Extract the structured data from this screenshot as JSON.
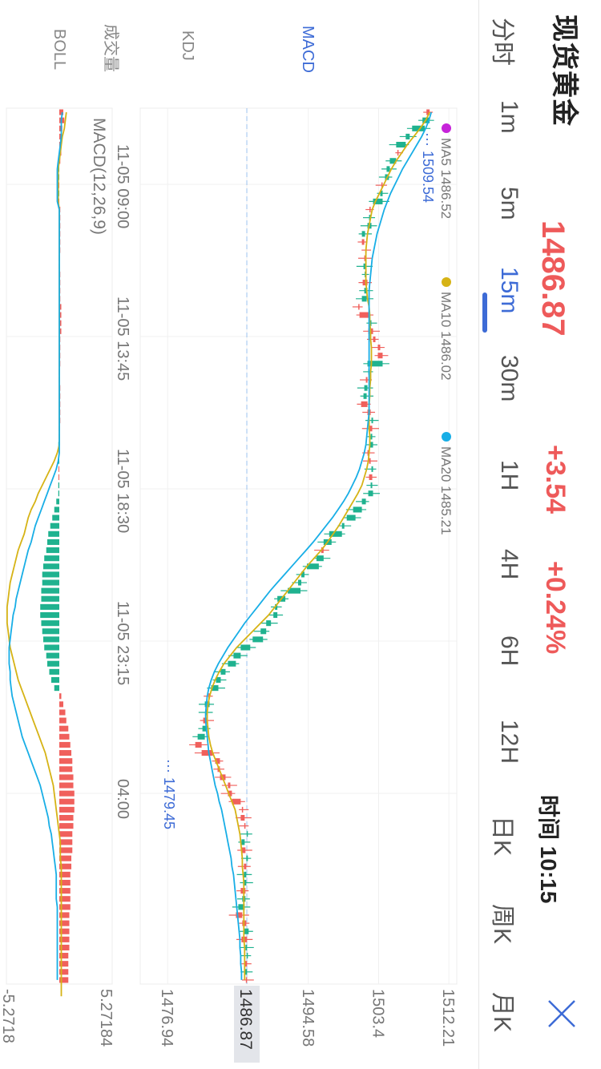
{
  "header": {
    "title": "现货黄金",
    "price": "1486.87",
    "change": "+3.54",
    "change_pct": "+0.24%",
    "time_label": "时间",
    "time_value": "10:15",
    "close_icon": "close-icon"
  },
  "periods": [
    {
      "label": "分时",
      "active": false
    },
    {
      "label": "1m",
      "active": false
    },
    {
      "label": "5m",
      "active": false
    },
    {
      "label": "15m",
      "active": true
    },
    {
      "label": "30m",
      "active": false
    },
    {
      "label": "1H",
      "active": false
    },
    {
      "label": "4H",
      "active": false
    },
    {
      "label": "6H",
      "active": false
    },
    {
      "label": "12H",
      "active": false
    },
    {
      "label": "日K",
      "active": false
    },
    {
      "label": "周K",
      "active": false
    },
    {
      "label": "月K",
      "active": false
    }
  ],
  "indicator_tabs": [
    {
      "label": "成交量",
      "active": false
    },
    {
      "label": "MACD",
      "active": true
    },
    {
      "label": "KDJ",
      "active": false
    },
    {
      "label": "BOLL",
      "active": false
    }
  ],
  "colors": {
    "up": "#f0605c",
    "down": "#1fb28f",
    "ma5": "#c623d9",
    "ma10": "#d6b315",
    "ma20": "#18aee6",
    "accent": "#3d6bd6"
  },
  "chart_data": [
    {
      "type": "candlestick",
      "legend": [
        {
          "name": "MA5",
          "value": "1486.52"
        },
        {
          "name": "MA10",
          "value": "1486.02"
        },
        {
          "name": "MA20",
          "value": "1485.21"
        }
      ],
      "y_ticks": [
        "1512.21",
        "1503.4",
        "1494.58",
        "1486.87",
        "1476.94"
      ],
      "ylim": [
        1473.5,
        1513.2
      ],
      "current_price": 1486.87,
      "x_ticks": [
        "11-05 09:00",
        "11-05 13:45",
        "11-05 18:30",
        "11-05 23:15",
        "04:00"
      ],
      "high_label": "1509.54",
      "low_label": "1479.45",
      "close_series": [
        1509.8,
        1508.9,
        1507.6,
        1506.8,
        1505.6,
        1505.9,
        1504.8,
        1504.4,
        1504.2,
        1503.9,
        1503.6,
        1502.7,
        1502.4,
        1502.2,
        1502.0,
        1501.3,
        1501.6,
        1501.9,
        1501.8,
        1501.5,
        1501.7,
        1502.0,
        1501.6,
        1501.3,
        1501.0,
        1502.2,
        1502.4,
        1502.7,
        1503.0,
        1503.6,
        1503.9,
        1502.0,
        1502.1,
        1502.0,
        1501.6,
        1501.5,
        1502.0,
        1502.4,
        1502.5,
        1502.6,
        1502.4,
        1502.3,
        1502.2,
        1502.4,
        1502.5,
        1502.6,
        1502.4,
        1502.1,
        1501.3,
        1500.2,
        1499.4,
        1498.8,
        1497.2,
        1496.5,
        1496.5,
        1495.6,
        1494.4,
        1493.7,
        1493.3,
        1492.0,
        1490.7,
        1490.4,
        1490.2,
        1489.3,
        1488.6,
        1487.6,
        1486.1,
        1485.2,
        1484.5,
        1483.6,
        1483.0,
        1482.4,
        1482.2,
        1481.6,
        1481.7,
        1481.9,
        1481.3,
        1480.7,
        1481.2,
        1482.6,
        1483.5,
        1483.5,
        1484.2,
        1484.8,
        1485.0,
        1486.1,
        1486.4,
        1486.6,
        1486.7,
        1486.9,
        1486.2,
        1486.7,
        1486.8,
        1486.8,
        1486.5,
        1486.4,
        1486.7,
        1486.3,
        1485.8,
        1486.3,
        1486.8,
        1486.5,
        1486.9,
        1486.7,
        1486.9,
        1486.9,
        1486.6,
        1486.9
      ],
      "ma10_series": [
        1509.8,
        1509.3,
        1508.6,
        1507.8,
        1507.0,
        1506.3,
        1505.6,
        1505.0,
        1504.5,
        1504.0,
        1503.5,
        1503.0,
        1502.6,
        1502.4,
        1502.2,
        1502.0,
        1501.9,
        1501.8,
        1501.8,
        1501.8,
        1501.8,
        1501.8,
        1501.9,
        1502.0,
        1502.2,
        1502.3,
        1502.3,
        1502.4,
        1502.4,
        1502.5,
        1502.5,
        1502.5,
        1502.4,
        1502.4,
        1502.3,
        1502.3,
        1502.2,
        1502.2,
        1502.2,
        1502.2,
        1502.3,
        1502.3,
        1502.2,
        1502.1,
        1501.9,
        1501.6,
        1501.3,
        1500.8,
        1500.2,
        1499.6,
        1499.0,
        1498.4,
        1497.7,
        1497.0,
        1496.2,
        1495.3,
        1494.4,
        1493.6,
        1492.8,
        1492.0,
        1491.2,
        1490.4,
        1489.6,
        1488.6,
        1487.6,
        1486.6,
        1485.6,
        1484.8,
        1484.0,
        1483.4,
        1482.9,
        1482.5,
        1482.2,
        1482.0,
        1481.9,
        1481.9,
        1482.0,
        1482.1,
        1482.3,
        1482.6,
        1483.0,
        1483.4,
        1483.8,
        1484.2,
        1484.6,
        1485.0,
        1485.4,
        1485.6,
        1485.8,
        1486.0,
        1486.1,
        1486.2,
        1486.3,
        1486.3,
        1486.4,
        1486.5,
        1486.5,
        1486.5,
        1486.5,
        1486.5,
        1486.5,
        1486.5,
        1486.5,
        1486.6,
        1486.6,
        1486.6,
        1486.6,
        1486.6
      ],
      "ma20_series": [
        1510.0,
        1509.7,
        1509.3,
        1508.8,
        1508.2,
        1507.6,
        1507.0,
        1506.4,
        1505.9,
        1505.4,
        1504.9,
        1504.5,
        1504.1,
        1503.8,
        1503.5,
        1503.2,
        1503.0,
        1502.8,
        1502.6,
        1502.5,
        1502.4,
        1502.3,
        1502.2,
        1502.2,
        1502.2,
        1502.2,
        1502.2,
        1502.2,
        1502.2,
        1502.2,
        1502.2,
        1502.2,
        1502.2,
        1502.2,
        1502.2,
        1502.2,
        1502.2,
        1502.2,
        1502.1,
        1502.0,
        1501.9,
        1501.8,
        1501.6,
        1501.3,
        1501.0,
        1500.6,
        1500.1,
        1499.6,
        1499.0,
        1498.3,
        1497.6,
        1496.8,
        1496.0,
        1495.2,
        1494.3,
        1493.4,
        1492.5,
        1491.6,
        1490.7,
        1489.8,
        1489.0,
        1488.2,
        1487.4,
        1486.6,
        1485.9,
        1485.2,
        1484.5,
        1483.9,
        1483.3,
        1482.8,
        1482.4,
        1482.1,
        1481.9,
        1481.8,
        1481.7,
        1481.7,
        1481.8,
        1481.9,
        1482.0,
        1482.1,
        1482.3,
        1482.5,
        1482.7,
        1482.9,
        1483.2,
        1483.4,
        1483.7,
        1483.9,
        1484.1,
        1484.3,
        1484.5,
        1484.7,
        1484.9,
        1485.0,
        1485.2,
        1485.3,
        1485.4,
        1485.5,
        1485.6,
        1485.7,
        1485.8,
        1485.9,
        1486.0,
        1486.0,
        1486.1,
        1486.1,
        1486.2,
        1486.2
      ]
    },
    {
      "type": "bar",
      "name": "MACD(12,26,9)",
      "y_ticks": [
        "5.27184",
        "-5.2718"
      ],
      "ylim": [
        -5.2718,
        5.27184
      ],
      "histogram": [
        0.4,
        0.5,
        0.3,
        0.2,
        0.1,
        0.2,
        0.1,
        -0.1,
        -0.1,
        0,
        -0.1,
        0,
        0.1,
        0.1,
        0.1,
        0.1,
        0.1,
        0.1,
        0,
        0,
        0.1,
        0.1,
        0.1,
        0.1,
        0.2,
        0.2,
        0.2,
        0.2,
        0.1,
        0.1,
        0.1,
        0.1,
        0,
        0,
        0.1,
        0.1,
        0.1,
        0.1,
        0.1,
        0,
        0,
        -0.1,
        0,
        -0.1,
        0,
        0,
        -0.1,
        -0.1,
        -0.3,
        -0.5,
        -0.7,
        -0.9,
        -1.1,
        -1.2,
        -1.3,
        -1.5,
        -1.6,
        -1.7,
        -1.7,
        -1.8,
        -1.8,
        -1.9,
        -1.9,
        -1.8,
        -1.7,
        -1.6,
        -1.5,
        -1.3,
        -1.2,
        -1.0,
        -0.8,
        -0.5,
        0.2,
        0.4,
        0.6,
        0.7,
        0.9,
        1.0,
        1.1,
        1.2,
        1.3,
        1.3,
        1.4,
        1.4,
        1.5,
        1.5,
        1.5,
        1.4,
        1.4,
        1.3,
        1.3,
        1.3,
        1.2,
        1.2,
        1.1,
        1.1,
        1.1,
        1.1,
        1.1,
        1.0,
        1.0,
        1.0,
        1.0,
        1.0,
        0.9,
        0.9,
        0.9,
        0.9
      ],
      "dif_series": [
        0.7,
        0.6,
        0.5,
        0.3,
        0.2,
        0.1,
        0.0,
        -0.1,
        -0.1,
        -0.1,
        -0.1,
        -0.1,
        0,
        0,
        0,
        0,
        0,
        0,
        0,
        0,
        0,
        0,
        0,
        0,
        0,
        0,
        0,
        0,
        0,
        0,
        0,
        0,
        0,
        0,
        0,
        0,
        0,
        0,
        0,
        0,
        0,
        0,
        -0.2,
        -0.5,
        -0.9,
        -1.3,
        -1.7,
        -2.1,
        -2.4,
        -2.8,
        -3.1,
        -3.3,
        -3.5,
        -3.8,
        -4.1,
        -4.3,
        -4.5,
        -4.7,
        -4.9,
        -5.0,
        -5.1,
        -5.2,
        -5.2,
        -5.2,
        -5.1,
        -5.0,
        -4.9,
        -4.7,
        -4.5,
        -4.3,
        -4.1,
        -3.8,
        -3.5,
        -3.2,
        -2.9,
        -2.6,
        -2.3,
        -2.0,
        -1.7,
        -1.4,
        -1.2,
        -1.0,
        -0.8,
        -0.6,
        -0.5,
        -0.4,
        -0.3,
        -0.2,
        -0.1,
        0,
        0.1,
        0.1,
        0.1,
        0.2,
        0.2,
        0.2,
        0.2,
        0.2,
        0.2,
        0.2,
        0.2,
        0.2,
        0.2,
        0.2,
        0.2,
        0.2,
        0.2,
        0.2,
        0.2,
        0.2
      ],
      "dea_series": [
        0.3,
        0.2,
        0.2,
        0.2,
        0.1,
        0,
        -0.1,
        -0.2,
        -0.2,
        -0.2,
        -0.2,
        -0.2,
        0,
        0,
        0,
        0,
        0,
        0,
        0,
        0,
        0,
        0,
        0,
        0,
        0,
        0,
        0,
        0,
        0,
        0,
        0,
        0,
        0,
        0,
        0,
        0,
        0,
        0,
        0,
        0,
        0,
        0,
        0,
        -0.1,
        -0.3,
        -0.6,
        -0.9,
        -1.2,
        -1.5,
        -1.8,
        -2.1,
        -2.4,
        -2.6,
        -2.8,
        -3.1,
        -3.3,
        -3.5,
        -3.7,
        -3.9,
        -4.1,
        -4.3,
        -4.4,
        -4.6,
        -4.7,
        -4.8,
        -4.9,
        -5.0,
        -5.0,
        -5.0,
        -4.9,
        -4.9,
        -4.8,
        -4.7,
        -4.5,
        -4.3,
        -4.1,
        -3.9,
        -3.7,
        -3.4,
        -3.1,
        -2.8,
        -2.5,
        -2.2,
        -1.9,
        -1.7,
        -1.5,
        -1.3,
        -1.1,
        -1.0,
        -0.8,
        -0.7,
        -0.6,
        -0.5,
        -0.4,
        -0.3,
        -0.3,
        -0.3,
        -0.3,
        -0.2,
        -0.2,
        -0.2,
        -0.2,
        -0.2,
        -0.2,
        -0.2,
        -0.2,
        -0.2,
        -0.2
      ]
    }
  ]
}
